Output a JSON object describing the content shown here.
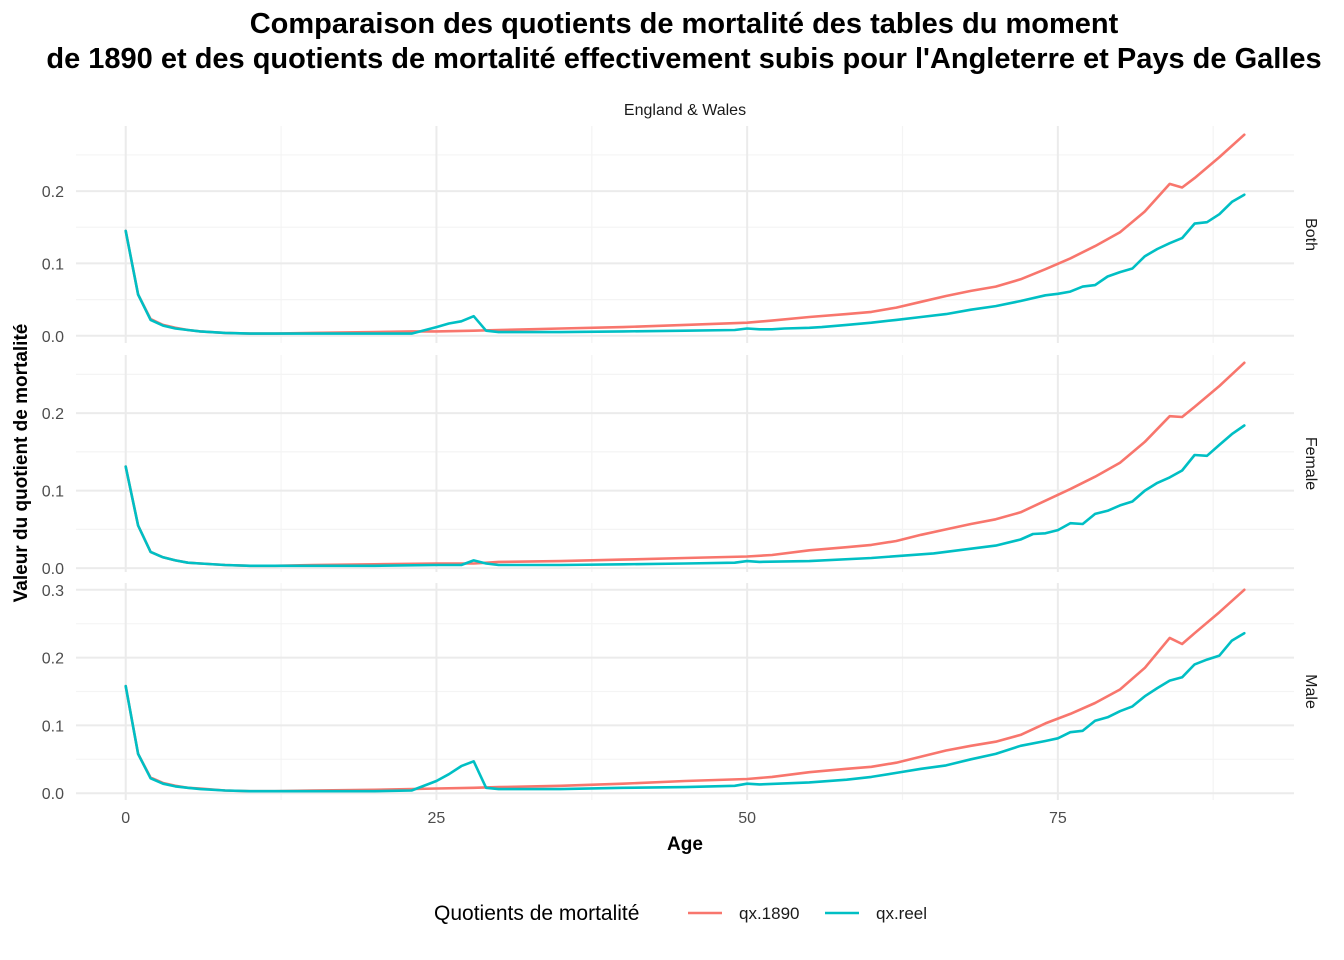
{
  "chart_data": {
    "type": "line",
    "title": "Comparaison des quotients de mortalité des tables du moment",
    "subtitle": "de 1890 et des quotients de mortalité effectivement subis pour l'Angleterre et Pays de Galles",
    "strip_label": "England & Wales",
    "xlabel": "Age",
    "ylabel": "Valeur du quotient de mortalité",
    "x_ticks": [
      0,
      25,
      50,
      75
    ],
    "xlim": [
      -4,
      94
    ],
    "grid": true,
    "legend": {
      "title": "Quotients de mortalité",
      "placement": "bottom",
      "items": [
        {
          "label": "qx.1890",
          "color": "#F8766D"
        },
        {
          "label": "qx.reel",
          "color": "#00BFC4"
        }
      ]
    },
    "panels": [
      {
        "name": "Both",
        "ylim": [
          -0.01,
          0.29
        ],
        "y_ticks": [
          0.0,
          0.1,
          0.2
        ],
        "y_tick_labels": [
          "0.0",
          "0.1",
          "0.2"
        ],
        "series": [
          {
            "name": "qx.1890",
            "color": "#F8766D",
            "x": [
              0,
              1,
              2,
              3,
              4,
              5,
              6,
              8,
              10,
              12,
              15,
              20,
              23,
              25,
              28,
              30,
              35,
              40,
              45,
              50,
              52,
              55,
              58,
              60,
              62,
              64,
              66,
              68,
              70,
              72,
              74,
              76,
              78,
              80,
              82,
              84,
              85,
              86,
              88,
              90
            ],
            "y": [
              0.145,
              0.057,
              0.023,
              0.015,
              0.011,
              0.008,
              0.006,
              0.004,
              0.003,
              0.003,
              0.004,
              0.005,
              0.006,
              0.006,
              0.007,
              0.008,
              0.01,
              0.012,
              0.015,
              0.018,
              0.021,
              0.026,
              0.03,
              0.033,
              0.039,
              0.047,
              0.055,
              0.062,
              0.068,
              0.078,
              0.092,
              0.107,
              0.124,
              0.143,
              0.172,
              0.21,
              0.205,
              0.218,
              0.247,
              0.278
            ]
          },
          {
            "name": "qx.reel",
            "color": "#00BFC4",
            "x": [
              0,
              1,
              2,
              3,
              4,
              5,
              6,
              8,
              10,
              12,
              15,
              20,
              23,
              25,
              26,
              27,
              28,
              29,
              30,
              35,
              40,
              45,
              49,
              50,
              51,
              52,
              53,
              55,
              56,
              58,
              60,
              62,
              64,
              66,
              68,
              70,
              72,
              74,
              75,
              76,
              77,
              78,
              79,
              80,
              81,
              82,
              83,
              84,
              85,
              86,
              87,
              88,
              89,
              90
            ],
            "y": [
              0.145,
              0.057,
              0.022,
              0.014,
              0.01,
              0.008,
              0.006,
              0.004,
              0.003,
              0.003,
              0.003,
              0.003,
              0.003,
              0.012,
              0.017,
              0.02,
              0.027,
              0.007,
              0.005,
              0.005,
              0.006,
              0.007,
              0.008,
              0.01,
              0.009,
              0.009,
              0.01,
              0.011,
              0.012,
              0.015,
              0.018,
              0.022,
              0.026,
              0.03,
              0.036,
              0.041,
              0.048,
              0.056,
              0.058,
              0.061,
              0.068,
              0.07,
              0.082,
              0.088,
              0.093,
              0.11,
              0.12,
              0.128,
              0.135,
              0.155,
              0.157,
              0.168,
              0.185,
              0.195
            ]
          }
        ]
      },
      {
        "name": "Female",
        "ylim": [
          -0.005,
          0.275
        ],
        "y_ticks": [
          0.0,
          0.1,
          0.2
        ],
        "y_tick_labels": [
          "0.0",
          "0.1",
          "0.2"
        ],
        "series": [
          {
            "name": "qx.1890",
            "color": "#F8766D",
            "x": [
              0,
              1,
              2,
              3,
              4,
              5,
              6,
              8,
              10,
              12,
              15,
              20,
              25,
              28,
              30,
              35,
              40,
              45,
              50,
              52,
              55,
              58,
              60,
              62,
              64,
              66,
              68,
              70,
              72,
              74,
              76,
              78,
              80,
              82,
              84,
              85,
              86,
              88,
              90
            ],
            "y": [
              0.131,
              0.055,
              0.021,
              0.014,
              0.01,
              0.007,
              0.006,
              0.004,
              0.003,
              0.003,
              0.004,
              0.005,
              0.006,
              0.006,
              0.008,
              0.009,
              0.011,
              0.013,
              0.015,
              0.017,
              0.023,
              0.027,
              0.03,
              0.035,
              0.043,
              0.05,
              0.057,
              0.063,
              0.072,
              0.087,
              0.102,
              0.118,
              0.136,
              0.163,
              0.196,
              0.195,
              0.208,
              0.235,
              0.265
            ]
          },
          {
            "name": "qx.reel",
            "color": "#00BFC4",
            "x": [
              0,
              1,
              2,
              3,
              4,
              5,
              6,
              8,
              10,
              12,
              15,
              20,
              25,
              27,
              28,
              29,
              30,
              35,
              40,
              45,
              49,
              50,
              51,
              55,
              60,
              65,
              70,
              72,
              73,
              74,
              75,
              76,
              77,
              78,
              79,
              80,
              81,
              82,
              83,
              84,
              85,
              86,
              87,
              88,
              89,
              90
            ],
            "y": [
              0.131,
              0.055,
              0.021,
              0.014,
              0.01,
              0.007,
              0.006,
              0.004,
              0.003,
              0.003,
              0.003,
              0.003,
              0.004,
              0.004,
              0.01,
              0.006,
              0.004,
              0.004,
              0.005,
              0.006,
              0.007,
              0.009,
              0.008,
              0.009,
              0.013,
              0.019,
              0.029,
              0.037,
              0.044,
              0.045,
              0.049,
              0.058,
              0.057,
              0.07,
              0.074,
              0.081,
              0.086,
              0.1,
              0.11,
              0.117,
              0.126,
              0.146,
              0.145,
              0.159,
              0.173,
              0.184
            ]
          }
        ]
      },
      {
        "name": "Male",
        "ylim": [
          -0.01,
          0.31
        ],
        "y_ticks": [
          0.0,
          0.1,
          0.2,
          0.3
        ],
        "y_tick_labels": [
          "0.0",
          "0.1",
          "0.2",
          "0.3"
        ],
        "series": [
          {
            "name": "qx.1890",
            "color": "#F8766D",
            "x": [
              0,
              1,
              2,
              3,
              4,
              5,
              6,
              8,
              10,
              12,
              15,
              20,
              25,
              28,
              30,
              35,
              40,
              45,
              50,
              52,
              55,
              58,
              60,
              62,
              64,
              66,
              68,
              70,
              72,
              74,
              76,
              78,
              80,
              82,
              84,
              85,
              86,
              88,
              90
            ],
            "y": [
              0.158,
              0.058,
              0.023,
              0.015,
              0.011,
              0.008,
              0.007,
              0.004,
              0.003,
              0.003,
              0.004,
              0.005,
              0.007,
              0.008,
              0.009,
              0.011,
              0.014,
              0.018,
              0.021,
              0.024,
              0.031,
              0.036,
              0.039,
              0.045,
              0.054,
              0.063,
              0.07,
              0.076,
              0.086,
              0.103,
              0.117,
              0.133,
              0.153,
              0.185,
              0.229,
              0.22,
              0.236,
              0.267,
              0.3
            ]
          },
          {
            "name": "qx.reel",
            "color": "#00BFC4",
            "x": [
              0,
              1,
              2,
              3,
              4,
              5,
              6,
              8,
              10,
              12,
              15,
              20,
              23,
              25,
              26,
              27,
              28,
              29,
              30,
              35,
              40,
              45,
              49,
              50,
              51,
              55,
              58,
              60,
              62,
              64,
              66,
              68,
              70,
              72,
              74,
              75,
              76,
              77,
              78,
              79,
              80,
              81,
              82,
              83,
              84,
              85,
              86,
              87,
              88,
              89,
              90
            ],
            "y": [
              0.158,
              0.058,
              0.022,
              0.014,
              0.01,
              0.008,
              0.006,
              0.004,
              0.003,
              0.003,
              0.003,
              0.003,
              0.004,
              0.018,
              0.028,
              0.04,
              0.047,
              0.008,
              0.006,
              0.006,
              0.008,
              0.009,
              0.011,
              0.014,
              0.013,
              0.016,
              0.02,
              0.024,
              0.03,
              0.036,
              0.041,
              0.05,
              0.058,
              0.07,
              0.077,
              0.081,
              0.09,
              0.092,
              0.107,
              0.112,
              0.121,
              0.128,
              0.143,
              0.155,
              0.166,
              0.171,
              0.19,
              0.197,
              0.203,
              0.225,
              0.236
            ]
          }
        ]
      }
    ]
  }
}
